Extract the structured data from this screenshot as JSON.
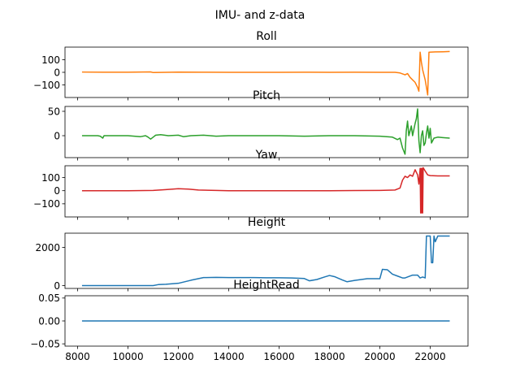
{
  "figure": {
    "suptitle": "IMU- and z-data"
  },
  "chart_data": [
    {
      "type": "line",
      "title": "Roll",
      "xlabel": "",
      "ylabel": "",
      "xlim": [
        7500,
        23500
      ],
      "ylim": [
        -200,
        200
      ],
      "xticks": [
        8000,
        10000,
        12000,
        14000,
        16000,
        18000,
        20000,
        22000
      ],
      "yticks": [
        100,
        0,
        -100
      ],
      "show_xticks": false,
      "grid": false,
      "series": [
        {
          "color": "#ff7f0e",
          "points": [
            [
              8200,
              2
            ],
            [
              9000,
              1
            ],
            [
              10000,
              1
            ],
            [
              10900,
              3
            ],
            [
              11000,
              -2
            ],
            [
              11500,
              0
            ],
            [
              12000,
              2
            ],
            [
              13000,
              1
            ],
            [
              14000,
              0
            ],
            [
              15000,
              0
            ],
            [
              16000,
              0
            ],
            [
              17000,
              1
            ],
            [
              18000,
              0
            ],
            [
              19000,
              1
            ],
            [
              20000,
              0
            ],
            [
              20600,
              0
            ],
            [
              20800,
              -5
            ],
            [
              21000,
              -20
            ],
            [
              21100,
              -10
            ],
            [
              21200,
              -40
            ],
            [
              21300,
              -60
            ],
            [
              21400,
              -80
            ],
            [
              21500,
              -120
            ],
            [
              21550,
              -150
            ],
            [
              21600,
              160
            ],
            [
              21650,
              80
            ],
            [
              21700,
              20
            ],
            [
              21800,
              -60
            ],
            [
              21900,
              -180
            ],
            [
              21950,
              160
            ],
            [
              22200,
              162
            ],
            [
              22500,
              163
            ],
            [
              22750,
              165
            ]
          ]
        }
      ]
    },
    {
      "type": "line",
      "title": "Pitch",
      "xlabel": "",
      "ylabel": "",
      "xlim": [
        7500,
        23500
      ],
      "ylim": [
        -45,
        60
      ],
      "xticks": [
        8000,
        10000,
        12000,
        14000,
        16000,
        18000,
        20000,
        22000
      ],
      "yticks": [
        50,
        0
      ],
      "show_xticks": false,
      "grid": false,
      "series": [
        {
          "color": "#2ca02c",
          "points": [
            [
              8200,
              0
            ],
            [
              8800,
              0
            ],
            [
              8900,
              -1
            ],
            [
              9000,
              -5
            ],
            [
              9050,
              0
            ],
            [
              9500,
              0
            ],
            [
              10000,
              0
            ],
            [
              10500,
              -2
            ],
            [
              10700,
              0
            ],
            [
              10800,
              -3
            ],
            [
              10900,
              -7
            ],
            [
              11000,
              -3
            ],
            [
              11100,
              1
            ],
            [
              11300,
              2
            ],
            [
              11600,
              0
            ],
            [
              12000,
              1
            ],
            [
              12200,
              -2
            ],
            [
              12500,
              0
            ],
            [
              13000,
              1
            ],
            [
              13500,
              -1
            ],
            [
              14000,
              0
            ],
            [
              15000,
              0
            ],
            [
              16000,
              0
            ],
            [
              17000,
              -1
            ],
            [
              18000,
              0
            ],
            [
              19000,
              0
            ],
            [
              20000,
              -1
            ],
            [
              20500,
              -3
            ],
            [
              20700,
              -8
            ],
            [
              20800,
              -5
            ],
            [
              20900,
              -25
            ],
            [
              21000,
              -38
            ],
            [
              21050,
              10
            ],
            [
              21100,
              30
            ],
            [
              21150,
              0
            ],
            [
              21250,
              20
            ],
            [
              21300,
              0
            ],
            [
              21400,
              25
            ],
            [
              21450,
              35
            ],
            [
              21500,
              55
            ],
            [
              21550,
              -10
            ],
            [
              21600,
              -35
            ],
            [
              21650,
              0
            ],
            [
              21700,
              10
            ],
            [
              21750,
              -20
            ],
            [
              21800,
              -15
            ],
            [
              21850,
              5
            ],
            [
              21900,
              20
            ],
            [
              21950,
              -5
            ],
            [
              22000,
              15
            ],
            [
              22050,
              -15
            ],
            [
              22150,
              -5
            ],
            [
              22300,
              -3
            ],
            [
              22500,
              -4
            ],
            [
              22750,
              -5
            ]
          ]
        }
      ]
    },
    {
      "type": "line",
      "title": "Yaw",
      "xlabel": "",
      "ylabel": "",
      "xlim": [
        7500,
        23500
      ],
      "ylim": [
        -200,
        190
      ],
      "xticks": [
        8000,
        10000,
        12000,
        14000,
        16000,
        18000,
        20000,
        22000
      ],
      "yticks": [
        100,
        0,
        -100
      ],
      "show_xticks": false,
      "grid": false,
      "series": [
        {
          "color": "#d62728",
          "points": [
            [
              8200,
              0
            ],
            [
              9000,
              0
            ],
            [
              10000,
              0
            ],
            [
              11000,
              2
            ],
            [
              11500,
              8
            ],
            [
              12000,
              15
            ],
            [
              12400,
              12
            ],
            [
              12800,
              5
            ],
            [
              13500,
              2
            ],
            [
              14000,
              0
            ],
            [
              15000,
              0
            ],
            [
              16000,
              0
            ],
            [
              17000,
              0
            ],
            [
              18000,
              0
            ],
            [
              19000,
              1
            ],
            [
              20000,
              2
            ],
            [
              20600,
              5
            ],
            [
              20800,
              20
            ],
            [
              20900,
              80
            ],
            [
              21000,
              110
            ],
            [
              21100,
              100
            ],
            [
              21200,
              120
            ],
            [
              21300,
              110
            ],
            [
              21400,
              160
            ],
            [
              21500,
              120
            ],
            [
              21550,
              50
            ],
            [
              21600,
              170
            ],
            [
              21620,
              -170
            ],
            [
              21640,
              170
            ],
            [
              21660,
              -170
            ],
            [
              21680,
              170
            ],
            [
              21700,
              -170
            ],
            [
              21720,
              175
            ],
            [
              21800,
              150
            ],
            [
              21900,
              120
            ],
            [
              22000,
              115
            ],
            [
              22300,
              113
            ],
            [
              22750,
              113
            ]
          ]
        }
      ]
    },
    {
      "type": "line",
      "title": "Height",
      "xlabel": "",
      "ylabel": "",
      "xlim": [
        7500,
        23500
      ],
      "ylim": [
        -150,
        2750
      ],
      "xticks": [
        8000,
        10000,
        12000,
        14000,
        16000,
        18000,
        20000,
        22000
      ],
      "yticks": [
        2000,
        0
      ],
      "show_xticks": false,
      "grid": false,
      "series": [
        {
          "color": "#1f77b4",
          "points": [
            [
              8200,
              0
            ],
            [
              9000,
              0
            ],
            [
              10000,
              0
            ],
            [
              11000,
              0
            ],
            [
              11200,
              50
            ],
            [
              11500,
              70
            ],
            [
              12000,
              120
            ],
            [
              12500,
              280
            ],
            [
              13000,
              420
            ],
            [
              13500,
              430
            ],
            [
              14000,
              420
            ],
            [
              14500,
              420
            ],
            [
              15000,
              420
            ],
            [
              15500,
              410
            ],
            [
              16000,
              410
            ],
            [
              16500,
              400
            ],
            [
              17000,
              370
            ],
            [
              17200,
              250
            ],
            [
              17500,
              320
            ],
            [
              17800,
              450
            ],
            [
              18000,
              530
            ],
            [
              18200,
              470
            ],
            [
              18500,
              300
            ],
            [
              18700,
              200
            ],
            [
              19000,
              270
            ],
            [
              19500,
              360
            ],
            [
              20000,
              360
            ],
            [
              20100,
              850
            ],
            [
              20300,
              830
            ],
            [
              20500,
              600
            ],
            [
              20700,
              500
            ],
            [
              20900,
              400
            ],
            [
              21000,
              400
            ],
            [
              21300,
              550
            ],
            [
              21500,
              550
            ],
            [
              21600,
              400
            ],
            [
              21700,
              450
            ],
            [
              21800,
              400
            ],
            [
              21850,
              2600
            ],
            [
              22000,
              2600
            ],
            [
              22050,
              1200
            ],
            [
              22100,
              1200
            ],
            [
              22150,
              2600
            ],
            [
              22200,
              2300
            ],
            [
              22300,
              2600
            ],
            [
              22750,
              2600
            ]
          ]
        }
      ]
    },
    {
      "type": "line",
      "title": "HeightRead",
      "xlabel": "",
      "ylabel": "",
      "xlim": [
        7500,
        23500
      ],
      "ylim": [
        -0.055,
        0.055
      ],
      "xticks": [
        8000,
        10000,
        12000,
        14000,
        16000,
        18000,
        20000,
        22000
      ],
      "xtick_labels": [
        "8000",
        "10000",
        "12000",
        "14000",
        "16000",
        "18000",
        "20000",
        "22000"
      ],
      "yticks": [
        0.05,
        0.0,
        -0.05
      ],
      "ytick_labels": [
        "0.05",
        "0.00",
        "−0.05"
      ],
      "show_xticks": true,
      "grid": false,
      "series": [
        {
          "color": "#1f77b4",
          "points": [
            [
              8200,
              0
            ],
            [
              22750,
              0
            ]
          ]
        }
      ]
    }
  ]
}
